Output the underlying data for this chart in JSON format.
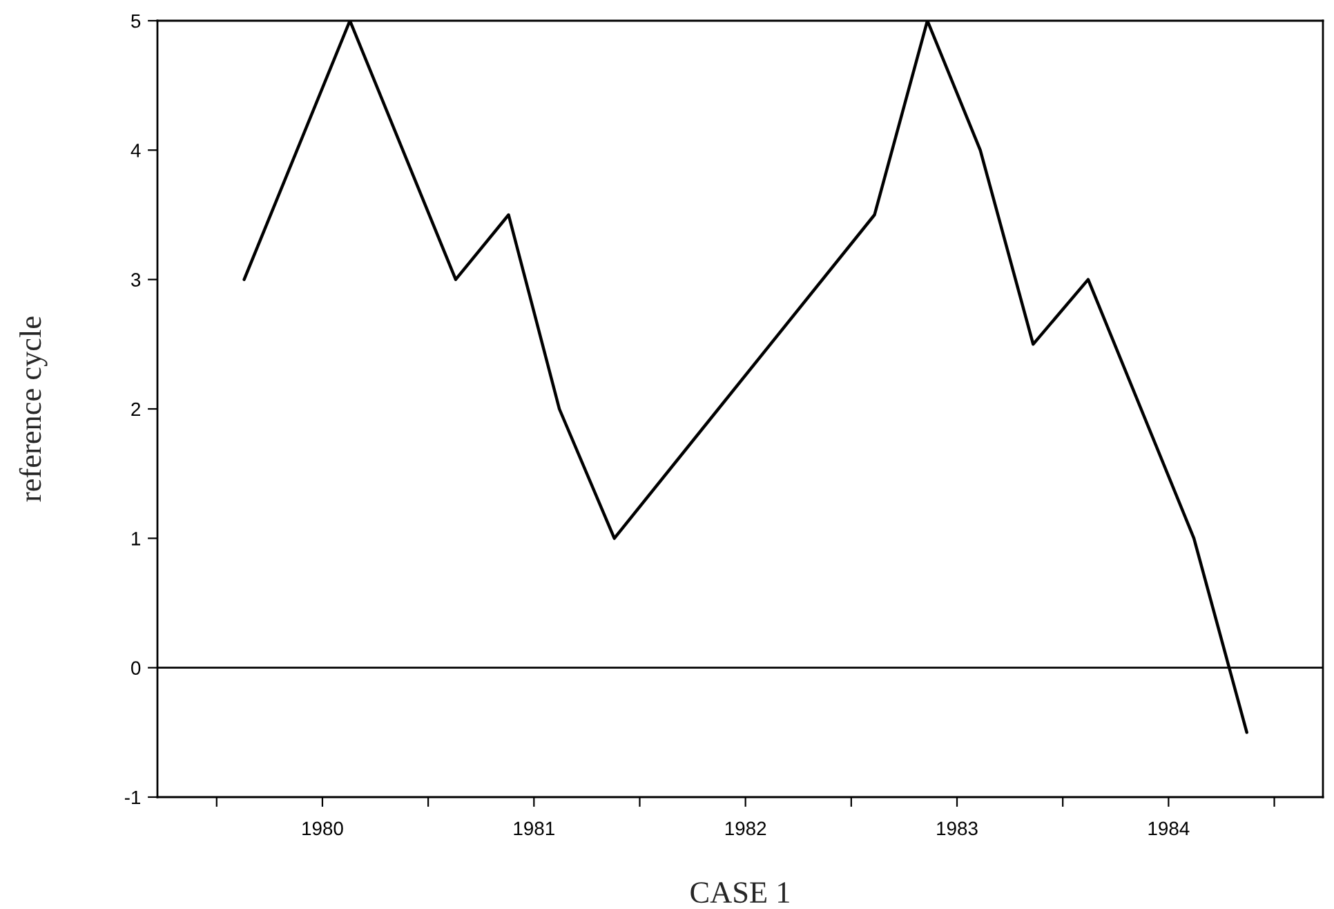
{
  "chart_data": {
    "type": "line",
    "xlabel": "CASE 1",
    "ylabel": "reference cycle",
    "x": [
      1980.13,
      1980.63,
      1981.13,
      1981.38,
      1981.62,
      1981.88,
      1983.11,
      1983.36,
      1983.61,
      1983.86,
      1984.12,
      1984.62,
      1984.87
    ],
    "series": [
      {
        "color": "#000000",
        "values": [
          3,
          5,
          3,
          3.5,
          2,
          1,
          3.5,
          5,
          4,
          2.5,
          3,
          1,
          -0.5
        ]
      }
    ],
    "xlim": [
      1979.72,
      1985.23
    ],
    "xticks": [
      {
        "value": 1980,
        "label": null
      },
      {
        "value": 1980.5,
        "label": "1980"
      },
      {
        "value": 1981,
        "label": null
      },
      {
        "value": 1981.5,
        "label": "1981"
      },
      {
        "value": 1982,
        "label": null
      },
      {
        "value": 1982.5,
        "label": "1982"
      },
      {
        "value": 1983,
        "label": null
      },
      {
        "value": 1983.5,
        "label": "1983"
      },
      {
        "value": 1984,
        "label": null
      },
      {
        "value": 1984.5,
        "label": "1984"
      },
      {
        "value": 1985,
        "label": null
      }
    ],
    "ylim": [
      -1,
      5
    ],
    "yticks": [
      -1,
      0,
      1,
      2,
      3,
      4,
      5
    ],
    "ref_lines": [
      {
        "axis": "y",
        "value": 0,
        "color": "#000000"
      }
    ],
    "grid": false,
    "legend": false,
    "marker": "none",
    "line_style": "solid"
  }
}
